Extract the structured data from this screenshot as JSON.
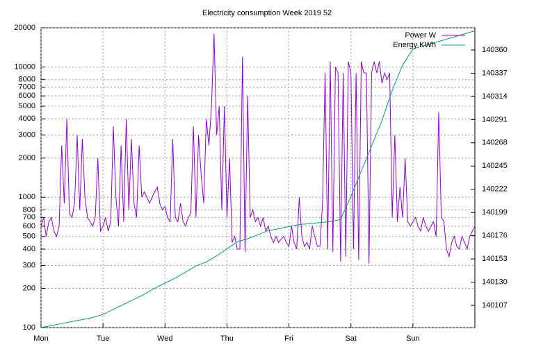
{
  "chart_data": {
    "type": "line",
    "title": "Electricity consumption Week 2019 52",
    "xlim": [
      0,
      168
    ],
    "xticks": [
      {
        "value": 0,
        "label": "Mon"
      },
      {
        "value": 24,
        "label": "Tue"
      },
      {
        "value": 48,
        "label": "Wed"
      },
      {
        "value": 72,
        "label": "Thu"
      },
      {
        "value": 96,
        "label": "Fri"
      },
      {
        "value": 120,
        "label": "Sat"
      },
      {
        "value": 144,
        "label": "Sun"
      }
    ],
    "ylim": [
      100,
      20000
    ],
    "ylog": true,
    "yticks": [
      100,
      200,
      300,
      400,
      500,
      600,
      700,
      800,
      1000,
      2000,
      3000,
      4000,
      5000,
      6000,
      7000,
      8000,
      10000,
      20000
    ],
    "y2lim": [
      140085,
      140382
    ],
    "y2ticks": [
      140107,
      140130,
      140153,
      140176,
      140199,
      140222,
      140245,
      140268,
      140291,
      140314,
      140337,
      140360
    ],
    "grid": true,
    "legend": "top-right",
    "series": [
      {
        "name": "Power W",
        "color": "#9400d3",
        "x": [
          0,
          1,
          2,
          3,
          4,
          5,
          6,
          7,
          8,
          9,
          10,
          11,
          12,
          13,
          14,
          15,
          16,
          17,
          18,
          19,
          20,
          21,
          22,
          23,
          24,
          25,
          26,
          27,
          28,
          29,
          30,
          31,
          32,
          33,
          34,
          35,
          36,
          37,
          38,
          39,
          40,
          41,
          42,
          43,
          44,
          45,
          46,
          47,
          48,
          49,
          50,
          51,
          52,
          53,
          54,
          55,
          56,
          57,
          58,
          59,
          60,
          61,
          62,
          63,
          64,
          65,
          66,
          67,
          68,
          69,
          70,
          71,
          72,
          73,
          74,
          75,
          76,
          77,
          78,
          79,
          80,
          81,
          82,
          83,
          84,
          85,
          86,
          87,
          88,
          89,
          90,
          91,
          92,
          93,
          94,
          95,
          96,
          97,
          98,
          99,
          100,
          101,
          102,
          103,
          104,
          105,
          106,
          107,
          108,
          109,
          110,
          111,
          112,
          113,
          114,
          115,
          116,
          117,
          118,
          119,
          120,
          121,
          122,
          123,
          124,
          125,
          126,
          127,
          128,
          129,
          130,
          131,
          132,
          133,
          134,
          135,
          136,
          137,
          138,
          139,
          140,
          141,
          142,
          143,
          144,
          145,
          146,
          147,
          148,
          149,
          150,
          151,
          152,
          153,
          154,
          155,
          156,
          157,
          158,
          159,
          160,
          161,
          162,
          163,
          164,
          165,
          166,
          167,
          168
        ],
        "values": [
          600,
          700,
          500,
          650,
          700,
          550,
          500,
          600,
          2500,
          900,
          4000,
          750,
          700,
          900,
          3000,
          800,
          2800,
          1000,
          700,
          650,
          600,
          700,
          2000,
          550,
          600,
          700,
          550,
          650,
          3500,
          1000,
          600,
          2500,
          650,
          4000,
          800,
          2800,
          900,
          700,
          2500,
          1000,
          1100,
          1000,
          900,
          1000,
          1100,
          1200,
          900,
          800,
          850,
          700,
          650,
          2800,
          700,
          650,
          900,
          650,
          600,
          700,
          750,
          3500,
          700,
          3000,
          1500,
          900,
          4000,
          2500,
          5000,
          18000,
          3000,
          5000,
          800,
          5000,
          700,
          2000,
          450,
          500,
          400,
          400,
          12000,
          380,
          6000,
          700,
          800,
          650,
          700,
          600,
          700,
          550,
          600,
          500,
          450,
          500,
          450,
          480,
          500,
          450,
          420,
          600,
          450,
          400,
          1000,
          500,
          420,
          450,
          400,
          600,
          500,
          420,
          420,
          900,
          9000,
          400,
          11000,
          380,
          10000,
          9000,
          320,
          9000,
          350,
          11000,
          9000,
          400,
          9000,
          330,
          11000,
          9000,
          9000,
          310,
          9000,
          11000,
          9000,
          11000,
          7500,
          9000,
          8000,
          9000,
          700,
          3000,
          650,
          1200,
          700,
          2000,
          650,
          600,
          650,
          700,
          600,
          550,
          700,
          600,
          550,
          600,
          650,
          500,
          4500,
          700,
          650,
          400,
          350,
          450,
          500,
          420,
          400,
          500,
          450,
          400,
          500,
          550,
          600
        ]
      },
      {
        "name": "Energy KWh",
        "color": "#009e73",
        "axis": "y2",
        "x": [
          0,
          4,
          8,
          12,
          16,
          20,
          24,
          28,
          32,
          36,
          40,
          44,
          48,
          52,
          56,
          60,
          64,
          68,
          72,
          76,
          80,
          84,
          88,
          92,
          96,
          100,
          104,
          108,
          112,
          116,
          120,
          124,
          128,
          132,
          136,
          140,
          144,
          148,
          152,
          156,
          160,
          164,
          168
        ],
        "values": [
          140085,
          140087,
          140089,
          140091,
          140093,
          140095,
          140098,
          140103,
          140108,
          140113,
          140118,
          140124,
          140129,
          140134,
          140140,
          140146,
          140150,
          140156,
          140163,
          140170,
          140173,
          140177,
          140181,
          140183,
          140185,
          140187,
          140188,
          140189,
          140190,
          140192,
          140215,
          140240,
          140265,
          140290,
          140320,
          140345,
          140361,
          140364,
          140367,
          140370,
          140373,
          140376,
          140379
        ]
      }
    ]
  }
}
